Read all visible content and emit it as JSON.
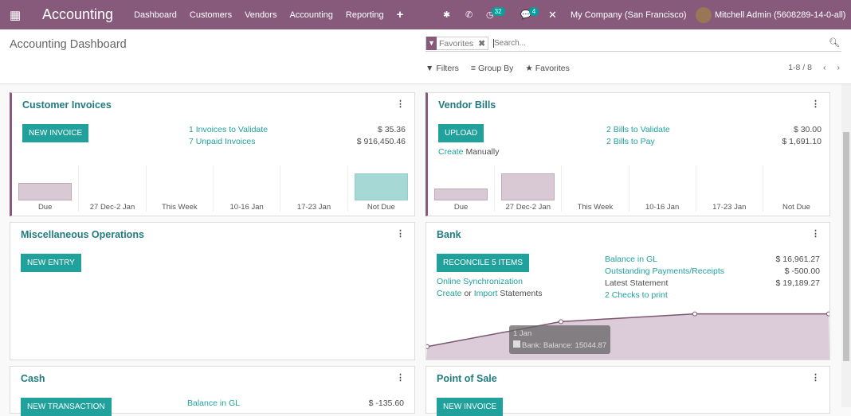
{
  "navbar": {
    "app_title": "Accounting",
    "menus": [
      "Dashboard",
      "Customers",
      "Vendors",
      "Accounting",
      "Reporting"
    ],
    "activity_count": "32",
    "message_count": "4",
    "company": "My Company (San Francisco)",
    "user": "Mitchell Admin (5608289-14-0-all)",
    "color": "#875a7b"
  },
  "control_panel": {
    "title": "Accounting Dashboard",
    "facet": "Favorites",
    "search_placeholder": "Search...",
    "filters": "Filters",
    "group_by": "Group By",
    "favorites": "Favorites",
    "pager": "1-8 / 8"
  },
  "accent": "#21a19c",
  "customer_invoices": {
    "title": "Customer Invoices",
    "button": "New Invoice",
    "rows": [
      {
        "label": "1 Invoices to Validate",
        "value": "$ 35.36"
      },
      {
        "label": "7 Unpaid Invoices",
        "value": "$ 916,450.46"
      }
    ],
    "chart": {
      "type": "bar",
      "categories": [
        "Due",
        "27 Dec-2 Jan",
        "This Week",
        "10-16 Jan",
        "17-23 Jan",
        "Not Due"
      ],
      "values": [
        0.65,
        0,
        0,
        0,
        0,
        1
      ]
    }
  },
  "vendor_bills": {
    "title": "Vendor Bills",
    "button": "Upload",
    "create_manually": "Create",
    "create_manually_suffix": "Manually",
    "rows": [
      {
        "label": "2 Bills to Validate",
        "value": "$ 30.00"
      },
      {
        "label": "2 Bills to Pay",
        "value": "$ 1,691.10"
      }
    ],
    "chart": {
      "type": "bar",
      "categories": [
        "Due",
        "27 Dec-2 Jan",
        "This Week",
        "10-16 Jan",
        "17-23 Jan",
        "Not Due"
      ],
      "values": [
        0.45,
        1,
        0,
        0,
        0,
        0
      ]
    }
  },
  "misc": {
    "title": "Miscellaneous Operations",
    "button": "New Entry"
  },
  "bank": {
    "title": "Bank",
    "button": "Reconcile 5 Items",
    "online_sync": "Online Synchronization",
    "create": "Create",
    "or": "or",
    "import": "Import",
    "statements": "Statements",
    "rows": [
      {
        "label": "Balance in GL",
        "value": "$ 16,961.27"
      },
      {
        "label": "Outstanding Payments/Receipts",
        "value": "$ -500.00"
      },
      {
        "label": "Latest Statement",
        "value": "$ 19,189.27"
      },
      {
        "label": "2 Checks to print",
        "value": ""
      }
    ],
    "chart": {
      "type": "area",
      "values": [
        12300,
        15044.87,
        15900,
        15900
      ]
    },
    "tooltip_title": "1 Jan",
    "tooltip_text": "Bank: Balance: 15044.87"
  },
  "cash": {
    "title": "Cash",
    "button": "New Transaction",
    "rows": [
      {
        "label": "Balance in GL",
        "value": "$ -135.60"
      }
    ]
  },
  "pos": {
    "title": "Point of Sale",
    "button": "New Invoice"
  }
}
